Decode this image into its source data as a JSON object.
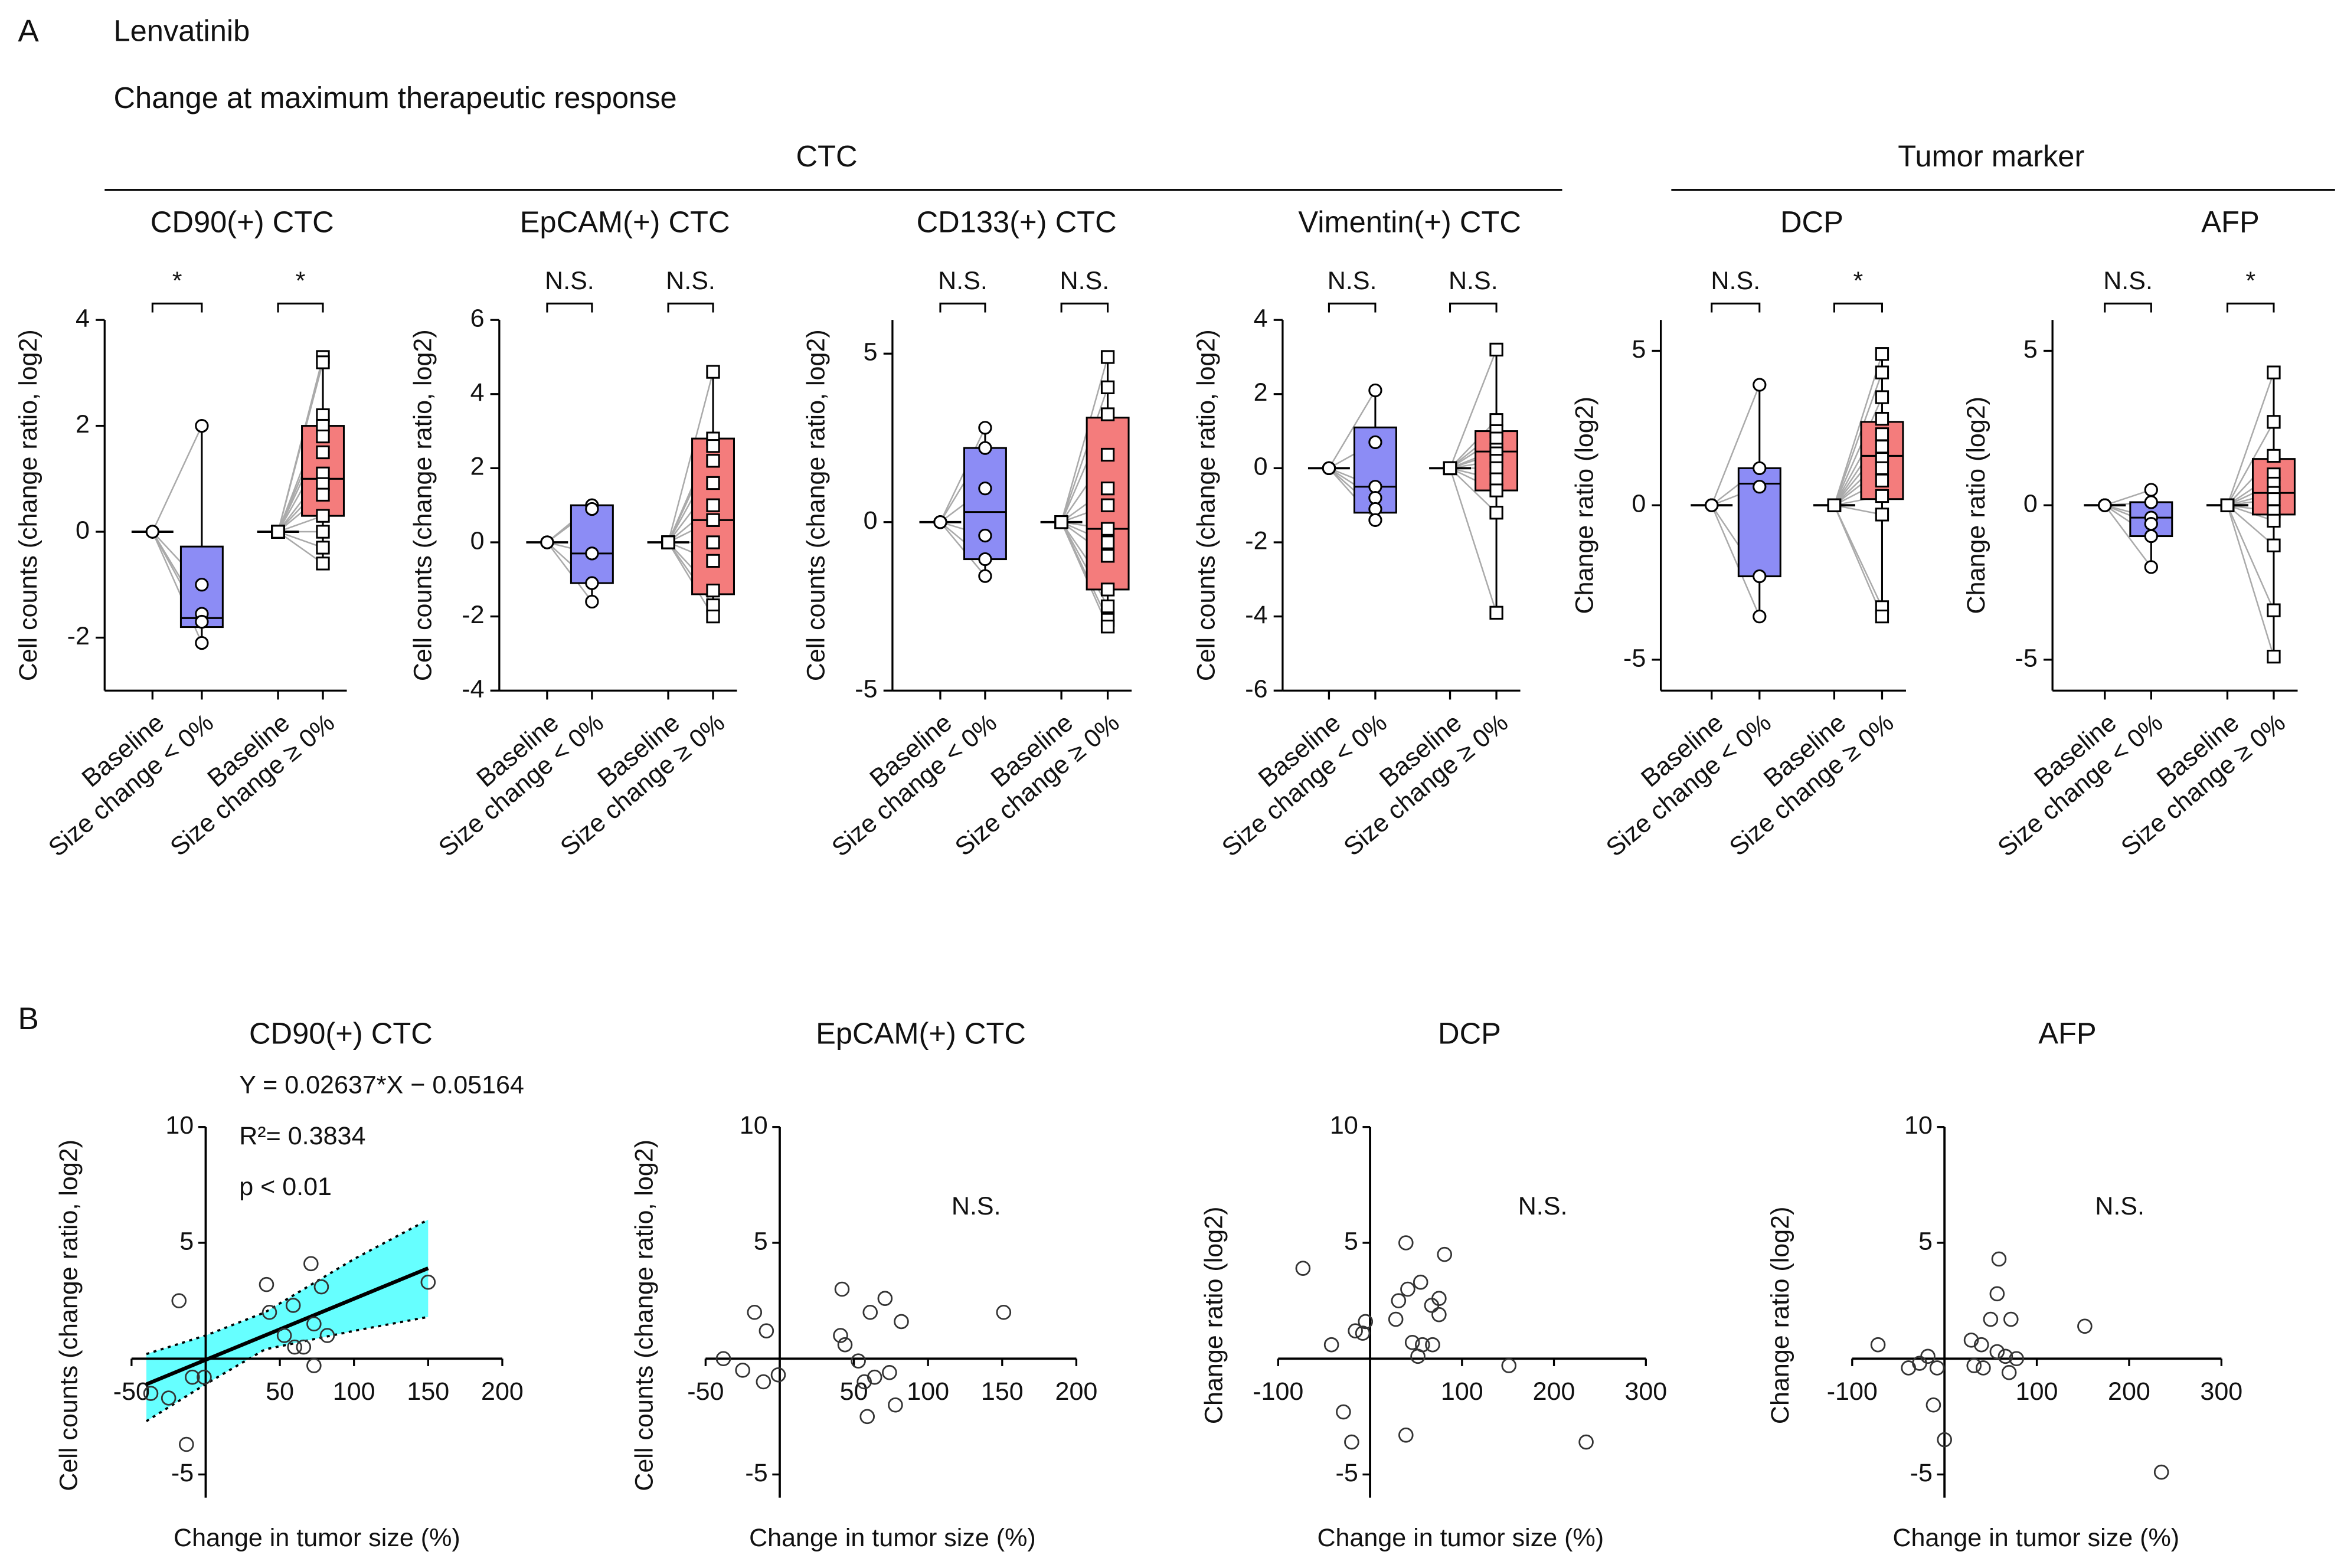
{
  "figure": {
    "panel_a_label": "A",
    "drug": "Lenvatinib",
    "subtitle": "Change at maximum therapeutic response",
    "group_ctc": "CTC",
    "group_marker": "Tumor marker",
    "panel_b_label": "B"
  },
  "chart_data": [
    {
      "type": "box",
      "title": "CD90(+) CTC",
      "ylabel": "Cell counts (change ratio, log2)",
      "categories": [
        "Baseline",
        "Size change < 0%",
        "Baseline",
        "Size change ≥ 0%"
      ],
      "ylim": [
        -3,
        4
      ],
      "yticks": [
        -2,
        0,
        2,
        4
      ],
      "groups": [
        {
          "significance": "*",
          "color": "#8c8cf5",
          "marker": "circle",
          "baseline": [
            0,
            0,
            0,
            0,
            0
          ],
          "values": [
            2.0,
            -1.0,
            -1.55,
            -1.7,
            -2.1
          ],
          "box": {
            "low": -2.1,
            "q1": -1.8,
            "median": -1.63,
            "q3": -0.28,
            "high": 2.0
          }
        },
        {
          "significance": "*",
          "color": "#f47c7c",
          "marker": "square",
          "baseline": [
            0,
            0,
            0,
            0,
            0,
            0,
            0,
            0,
            0,
            0,
            0,
            0,
            0
          ],
          "values": [
            3.3,
            3.2,
            2.2,
            2.0,
            1.8,
            1.5,
            1.1,
            0.9,
            0.7,
            0.3,
            0.0,
            -0.3,
            -0.6
          ],
          "box": {
            "low": -0.6,
            "q1": 0.3,
            "median": 1.0,
            "q3": 2.0,
            "high": 3.3
          }
        }
      ]
    },
    {
      "type": "box",
      "title": "EpCAM(+) CTC",
      "ylabel": "Cell counts (change ratio, log2)",
      "categories": [
        "Baseline",
        "Size change < 0%",
        "Baseline",
        "Size change ≥ 0%"
      ],
      "ylim": [
        -4,
        6
      ],
      "yticks": [
        -4,
        -2,
        0,
        2,
        4,
        6
      ],
      "groups": [
        {
          "significance": "N.S.",
          "color": "#8c8cf5",
          "marker": "circle",
          "baseline": [
            0,
            0,
            0,
            0,
            0
          ],
          "values": [
            1.0,
            0.9,
            -0.3,
            -1.1,
            -1.6
          ],
          "box": {
            "low": -1.6,
            "q1": -1.1,
            "median": -0.3,
            "q3": 1.0,
            "high": 1.0
          }
        },
        {
          "significance": "N.S.",
          "color": "#f47c7c",
          "marker": "square",
          "baseline": [
            0,
            0,
            0,
            0,
            0,
            0,
            0,
            0,
            0,
            0,
            0,
            0
          ],
          "values": [
            4.6,
            2.8,
            2.6,
            2.2,
            1.6,
            1.0,
            0.6,
            0.0,
            -0.5,
            -1.3,
            -1.7,
            -2.0
          ],
          "box": {
            "low": -2.0,
            "q1": -1.4,
            "median": 0.6,
            "q3": 2.8,
            "high": 4.6
          }
        }
      ]
    },
    {
      "type": "box",
      "title": "CD133(+) CTC",
      "ylabel": "Cell counts (change ratio, log2)",
      "categories": [
        "Baseline",
        "Size change < 0%",
        "Baseline",
        "Size change ≥ 0%"
      ],
      "ylim": [
        -5,
        6
      ],
      "yticks": [
        -5,
        0,
        5
      ],
      "groups": [
        {
          "significance": "N.S.",
          "color": "#8c8cf5",
          "marker": "circle",
          "baseline": [
            0,
            0,
            0,
            0,
            0,
            0
          ],
          "values": [
            2.8,
            2.2,
            1.0,
            -0.4,
            -1.1,
            -1.6
          ],
          "box": {
            "low": -1.6,
            "q1": -1.1,
            "median": 0.3,
            "q3": 2.2,
            "high": 2.8
          }
        },
        {
          "significance": "N.S.",
          "color": "#f47c7c",
          "marker": "square",
          "baseline": [
            0,
            0,
            0,
            0,
            0,
            0,
            0,
            0,
            0,
            0,
            0,
            0,
            0
          ],
          "values": [
            4.9,
            4.0,
            3.2,
            2.0,
            1.0,
            0.5,
            -0.2,
            -0.6,
            -1.0,
            -2.0,
            -2.5,
            -2.9,
            -3.1
          ],
          "box": {
            "low": -3.1,
            "q1": -2.0,
            "median": -0.2,
            "q3": 3.1,
            "high": 4.9
          }
        }
      ]
    },
    {
      "type": "box",
      "title": "Vimentin(+) CTC",
      "ylabel": "Cell counts (change ratio, log2)",
      "categories": [
        "Baseline",
        "Size change < 0%",
        "Baseline",
        "Size change ≥ 0%"
      ],
      "ylim": [
        -6,
        4
      ],
      "yticks": [
        -6,
        -4,
        -2,
        0,
        2,
        4
      ],
      "groups": [
        {
          "significance": "N.S.",
          "color": "#8c8cf5",
          "marker": "circle",
          "baseline": [
            0,
            0,
            0,
            0,
            0,
            0
          ],
          "values": [
            2.1,
            0.7,
            -0.5,
            -0.8,
            -1.1,
            -1.4
          ],
          "box": {
            "low": -1.4,
            "q1": -1.2,
            "median": -0.5,
            "q3": 1.1,
            "high": 2.1
          }
        },
        {
          "significance": "N.S.",
          "color": "#f47c7c",
          "marker": "square",
          "baseline": [
            0,
            0,
            0,
            0,
            0,
            0,
            0,
            0,
            0,
            0,
            0,
            0
          ],
          "values": [
            3.2,
            1.3,
            1.0,
            0.8,
            0.5,
            0.4,
            0.2,
            0.0,
            -0.3,
            -0.6,
            -1.2,
            -3.9
          ],
          "box": {
            "low": -3.9,
            "q1": -0.6,
            "median": 0.45,
            "q3": 1.0,
            "high": 3.2
          }
        }
      ]
    },
    {
      "type": "box",
      "title": "DCP",
      "ylabel": "Change ratio (log2)",
      "categories": [
        "Baseline",
        "Size change < 0%",
        "Baseline",
        "Size change ≥ 0%"
      ],
      "ylim": [
        -6,
        6
      ],
      "yticks": [
        -5,
        0,
        5
      ],
      "groups": [
        {
          "significance": "N.S.",
          "color": "#8c8cf5",
          "marker": "circle",
          "baseline": [
            0,
            0,
            0,
            0,
            0
          ],
          "values": [
            3.9,
            1.2,
            0.6,
            -2.3,
            -3.6
          ],
          "box": {
            "low": -3.6,
            "q1": -2.3,
            "median": 0.7,
            "q3": 1.2,
            "high": 3.9
          }
        },
        {
          "significance": "*",
          "color": "#f47c7c",
          "marker": "square",
          "baseline": [
            0,
            0,
            0,
            0,
            0,
            0,
            0,
            0,
            0,
            0,
            0,
            0,
            0
          ],
          "values": [
            4.9,
            4.3,
            3.5,
            2.8,
            2.3,
            1.9,
            1.5,
            1.2,
            0.8,
            0.3,
            -0.3,
            -3.3,
            -3.6
          ],
          "box": {
            "low": -3.6,
            "q1": 0.2,
            "median": 1.6,
            "q3": 2.7,
            "high": 4.9
          }
        }
      ]
    },
    {
      "type": "box",
      "title": "AFP",
      "ylabel": "Change ratio (log2)",
      "categories": [
        "Baseline",
        "Size change < 0%",
        "Baseline",
        "Size change ≥ 0%"
      ],
      "ylim": [
        -6,
        6
      ],
      "yticks": [
        -5,
        0,
        5
      ],
      "groups": [
        {
          "significance": "N.S.",
          "color": "#8c8cf5",
          "marker": "circle",
          "baseline": [
            0,
            0,
            0,
            0,
            0,
            0
          ],
          "values": [
            0.5,
            0.1,
            -0.4,
            -0.6,
            -1.0,
            -2.0
          ],
          "box": {
            "low": -2.0,
            "q1": -1.0,
            "median": -0.4,
            "q3": 0.1,
            "high": 0.5
          }
        },
        {
          "significance": "*",
          "color": "#f47c7c",
          "marker": "square",
          "baseline": [
            0,
            0,
            0,
            0,
            0,
            0,
            0,
            0,
            0,
            0,
            0,
            0
          ],
          "values": [
            4.3,
            2.7,
            1.6,
            1.0,
            0.7,
            0.4,
            0.2,
            -0.2,
            -0.5,
            -1.3,
            -3.4,
            -4.9
          ],
          "box": {
            "low": -4.9,
            "q1": -0.3,
            "median": 0.4,
            "q3": 1.5,
            "high": 4.3
          }
        }
      ]
    },
    {
      "type": "scatter",
      "title": "CD90(+) CTC",
      "xlabel": "Change in tumor size (%)",
      "ylabel": "Cell counts (change ratio, log2)",
      "xlim": [
        -50,
        200
      ],
      "xticks": [
        -50,
        50,
        100,
        150,
        200
      ],
      "ylim": [
        -6,
        10
      ],
      "yticks": [
        -5,
        5,
        10
      ],
      "x": [
        -18,
        -37,
        -25,
        -13,
        -9,
        -1,
        41,
        43,
        59,
        53,
        60,
        66,
        71,
        73,
        78,
        73,
        82,
        150
      ],
      "values": [
        2.5,
        -1.5,
        -1.7,
        -3.7,
        -0.8,
        -0.8,
        3.2,
        2.0,
        2.3,
        1.0,
        0.5,
        0.5,
        4.1,
        1.5,
        3.1,
        -0.3,
        1.0,
        3.3
      ],
      "fit": {
        "slope": 0.02637,
        "intercept": -0.05164,
        "xrange": [
          -40,
          150
        ]
      },
      "band": {
        "color": "#66ffff",
        "x": [
          -40,
          0,
          40,
          100,
          150
        ],
        "upper": [
          0.2,
          1.0,
          2.0,
          4.3,
          6.0
        ],
        "lower": [
          -2.7,
          -1.1,
          0.4,
          1.2,
          1.8
        ]
      },
      "annotations": [
        "Y = 0.02637*X − 0.05164",
        "R²= 0.3834",
        "p < 0.01"
      ]
    },
    {
      "type": "scatter",
      "title": "EpCAM(+) CTC",
      "xlabel": "Change in tumor size (%)",
      "ylabel": "Cell counts (change ratio, log2)",
      "xlim": [
        -50,
        200
      ],
      "xticks": [
        -50,
        50,
        100,
        150,
        200
      ],
      "ylim": [
        -6,
        10
      ],
      "yticks": [
        -5,
        5,
        10
      ],
      "x": [
        -38,
        -25,
        -17,
        -11,
        -9,
        -1,
        42,
        41,
        44,
        53,
        57,
        59,
        61,
        64,
        71,
        74,
        78,
        82,
        151
      ],
      "values": [
        0,
        -0.5,
        2.0,
        -1.0,
        1.2,
        -0.7,
        3.0,
        1.0,
        0.6,
        -0.1,
        -1.0,
        -2.5,
        2.0,
        -0.8,
        2.6,
        -0.6,
        -2.0,
        1.6,
        2.0
      ],
      "annotations": [
        "N.S."
      ]
    },
    {
      "type": "scatter",
      "title": "DCP",
      "xlabel": "Change in tumor size (%)",
      "ylabel": "Change ratio (log2)",
      "xlim": [
        -100,
        300
      ],
      "xticks": [
        -100,
        100,
        200,
        300
      ],
      "ylim": [
        -6,
        10
      ],
      "yticks": [
        -5,
        5,
        10
      ],
      "x": [
        -73,
        -42,
        -29,
        -20,
        -16,
        -8,
        -5,
        28,
        31,
        41,
        39,
        46,
        55,
        52,
        57,
        67,
        68,
        75,
        75,
        81,
        39,
        151,
        235
      ],
      "values": [
        3.9,
        0.6,
        -2.3,
        -3.6,
        1.2,
        1.1,
        1.6,
        1.7,
        2.5,
        3.0,
        5.0,
        0.7,
        3.3,
        0.1,
        0.6,
        2.3,
        0.6,
        1.9,
        2.6,
        4.5,
        -3.3,
        -0.3,
        -3.6
      ],
      "annotations": [
        "N.S."
      ]
    },
    {
      "type": "scatter",
      "title": "AFP",
      "xlabel": "Change in tumor size (%)",
      "ylabel": "Change ratio (log2)",
      "xlim": [
        -100,
        300
      ],
      "xticks": [
        -100,
        100,
        200,
        300
      ],
      "ylim": [
        -6,
        10
      ],
      "yticks": [
        -5,
        5,
        10
      ],
      "x": [
        -72,
        -39,
        -27,
        -18,
        -12,
        -8,
        0,
        29,
        32,
        40,
        42,
        50,
        57,
        59,
        57,
        66,
        72,
        70,
        78,
        152,
        235
      ],
      "values": [
        0.6,
        -0.4,
        -0.2,
        0.1,
        -2.0,
        -0.4,
        -3.5,
        0.8,
        -0.3,
        0.6,
        -0.4,
        1.7,
        2.8,
        4.3,
        0.3,
        0.1,
        1.7,
        -0.6,
        0,
        1.4,
        -4.9
      ],
      "annotations": [
        "N.S."
      ]
    }
  ]
}
